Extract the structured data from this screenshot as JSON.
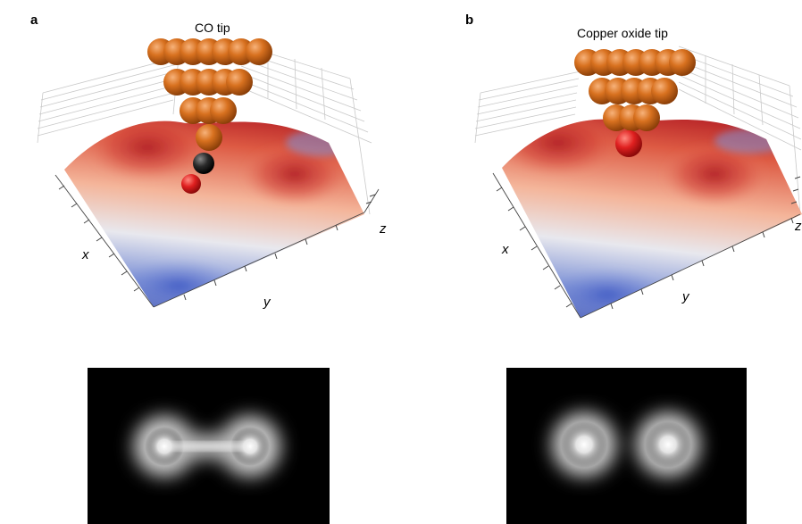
{
  "panels": [
    {
      "letter": "a",
      "tip_title": "CO tip",
      "axis_labels": {
        "x": "x",
        "y": "y",
        "z": "z"
      },
      "tip_atoms": "copper pyramid with carbon and oxygen apex",
      "image_features": "bright double lobe connected by bridge"
    },
    {
      "letter": "b",
      "tip_title": "Copper oxide tip",
      "axis_labels": {
        "x": "x",
        "y": "y",
        "z": "z"
      },
      "tip_atoms": "copper pyramid with oxygen apex",
      "image_features": "two separate bright lobes"
    }
  ],
  "colors": {
    "copper": "#d2691e",
    "carbon": "#222222",
    "oxygen": "#e02020",
    "surface_high": "#c0282a",
    "surface_low": "#3d4fb0",
    "image_background": "#000000"
  }
}
